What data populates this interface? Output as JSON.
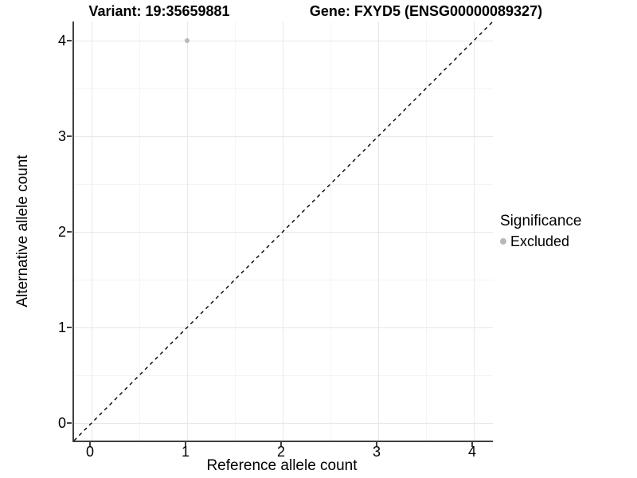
{
  "colors": {
    "background": "#ffffff",
    "text": "#000000",
    "axis_line": "#404040",
    "grid_major": "#e8e8e8",
    "grid_minor": "#f4f4f4",
    "excluded_point": "#b8b8b8",
    "diagonal_line": "#000000"
  },
  "header": {
    "title_left": "Variant: 19:35659881",
    "title_right": "Gene: FXYD5 (ENSG00000089327)"
  },
  "chart_data": {
    "type": "scatter",
    "xlabel": "Reference allele count",
    "ylabel": "Alternative allele count",
    "xlim": [
      -0.18,
      4.22
    ],
    "ylim": [
      -0.18,
      4.22
    ],
    "xticks": [
      0,
      1,
      2,
      3,
      4
    ],
    "yticks": [
      0,
      1,
      2,
      3,
      4
    ],
    "minor_ticks_x": [
      0.5,
      1.5,
      2.5,
      3.5
    ],
    "minor_ticks_y": [
      0.5,
      1.5,
      2.5,
      3.5
    ],
    "grid": "major and minor gridlines on white background",
    "points": [
      {
        "x": 1,
        "y": 4,
        "series": "Excluded"
      }
    ],
    "reference_line": {
      "slope": 1,
      "intercept": 0,
      "style": "dashed",
      "color": "#000000"
    },
    "legend": {
      "title": "Significance",
      "position": "right",
      "entries": [
        {
          "label": "Excluded",
          "color": "#b8b8b8",
          "marker": "circle"
        }
      ]
    }
  }
}
